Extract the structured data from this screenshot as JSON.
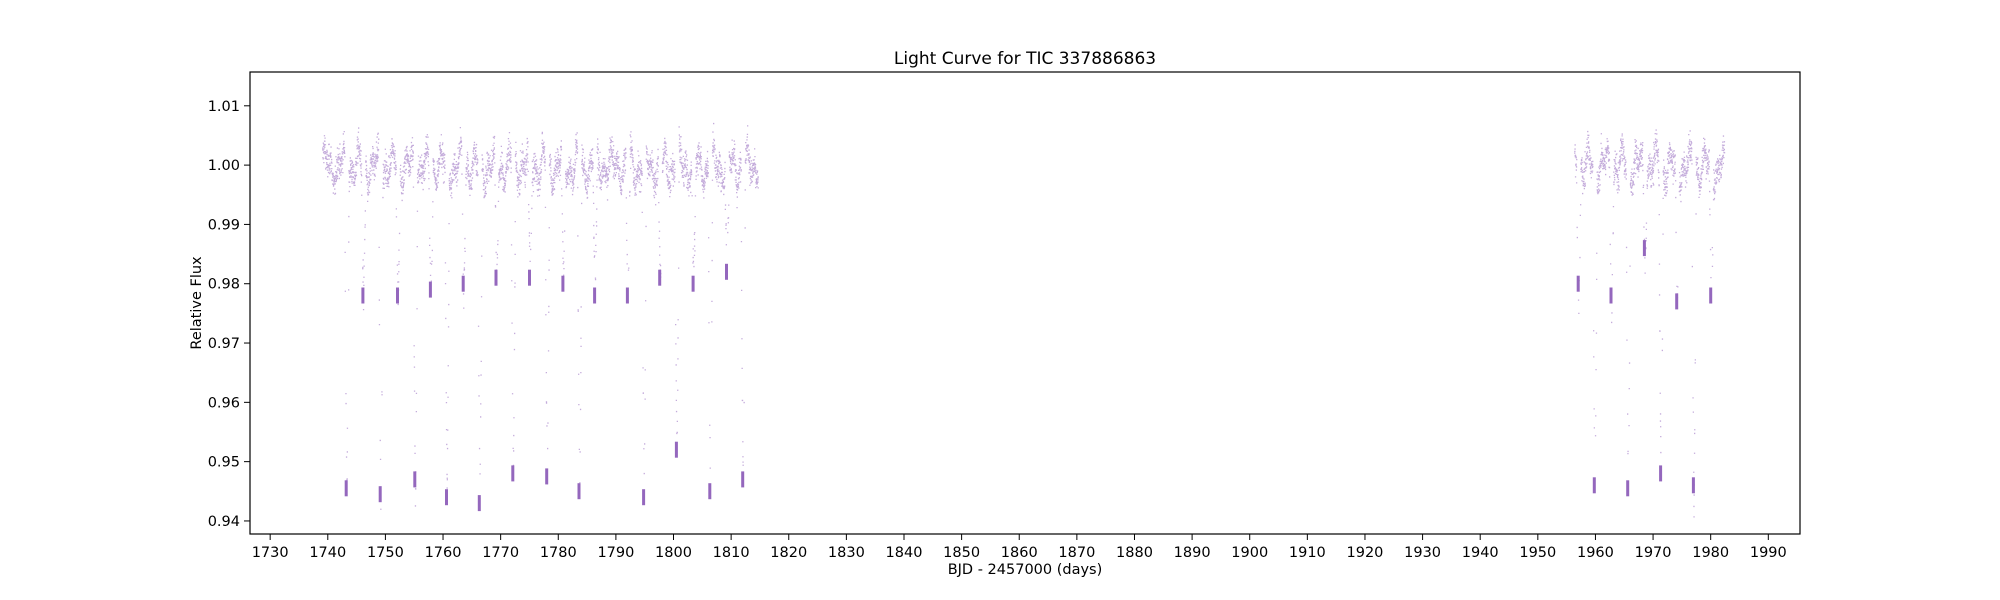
{
  "chart_data": {
    "type": "scatter",
    "title": "Light Curve for TIC 337886863",
    "xlabel": "BJD - 2457000 (days)",
    "ylabel": "Relative Flux",
    "xlim": [
      1726.5,
      1995.5
    ],
    "ylim": [
      0.9378,
      1.0157
    ],
    "xticks": [
      1730,
      1740,
      1750,
      1760,
      1770,
      1780,
      1790,
      1800,
      1810,
      1820,
      1830,
      1840,
      1850,
      1860,
      1870,
      1880,
      1890,
      1900,
      1910,
      1920,
      1930,
      1940,
      1950,
      1960,
      1970,
      1980,
      1990
    ],
    "xtick_labels": [
      "1730",
      "1740",
      "1750",
      "1760",
      "1770",
      "1780",
      "1790",
      "1800",
      "1810",
      "1820",
      "1830",
      "1840",
      "1850",
      "1860",
      "1870",
      "1880",
      "1890",
      "1900",
      "1910",
      "1920",
      "1930",
      "1940",
      "1950",
      "1960",
      "1970",
      "1980",
      "1990"
    ],
    "yticks": [
      0.94,
      0.95,
      0.96,
      0.97,
      0.98,
      0.99,
      1.0,
      1.01
    ],
    "ytick_labels": [
      "0.94",
      "0.95",
      "0.96",
      "0.97",
      "0.98",
      "0.99",
      "1.00",
      "1.01"
    ],
    "grid": false,
    "legend": "none",
    "marker_color": "#9467bd",
    "series": [
      {
        "segments": [
          {
            "x_start": 1739.0,
            "x_end": 1814.6,
            "baseline": 1.0,
            "variability": 0.004
          },
          {
            "x_start": 1956.3,
            "x_end": 1982.3,
            "baseline": 1.0,
            "variability": 0.004
          }
        ],
        "dips": [
          {
            "x": 1743.2,
            "depth": 0.9445
          },
          {
            "x": 1746.1,
            "depth": 0.977
          },
          {
            "x": 1749.1,
            "depth": 0.9435
          },
          {
            "x": 1752.1,
            "depth": 0.977
          },
          {
            "x": 1755.1,
            "depth": 0.946
          },
          {
            "x": 1757.8,
            "depth": 0.978
          },
          {
            "x": 1760.6,
            "depth": 0.943
          },
          {
            "x": 1763.5,
            "depth": 0.979
          },
          {
            "x": 1766.3,
            "depth": 0.942
          },
          {
            "x": 1769.2,
            "depth": 0.98
          },
          {
            "x": 1772.1,
            "depth": 0.947
          },
          {
            "x": 1775.0,
            "depth": 0.98
          },
          {
            "x": 1778.0,
            "depth": 0.9465
          },
          {
            "x": 1780.8,
            "depth": 0.979
          },
          {
            "x": 1783.6,
            "depth": 0.944
          },
          {
            "x": 1786.3,
            "depth": 0.977
          },
          {
            "x": 1792.0,
            "depth": 0.977
          },
          {
            "x": 1794.8,
            "depth": 0.943
          },
          {
            "x": 1797.6,
            "depth": 0.98
          },
          {
            "x": 1800.5,
            "depth": 0.951
          },
          {
            "x": 1803.4,
            "depth": 0.979
          },
          {
            "x": 1806.3,
            "depth": 0.944
          },
          {
            "x": 1809.2,
            "depth": 0.981
          },
          {
            "x": 1812.0,
            "depth": 0.946
          },
          {
            "x": 1957.0,
            "depth": 0.979
          },
          {
            "x": 1959.8,
            "depth": 0.945
          },
          {
            "x": 1962.7,
            "depth": 0.977
          },
          {
            "x": 1965.6,
            "depth": 0.9445
          },
          {
            "x": 1968.5,
            "depth": 0.985
          },
          {
            "x": 1971.3,
            "depth": 0.947
          },
          {
            "x": 1974.1,
            "depth": 0.976
          },
          {
            "x": 1977.0,
            "depth": 0.945
          },
          {
            "x": 1980.0,
            "depth": 0.977
          }
        ]
      }
    ]
  }
}
